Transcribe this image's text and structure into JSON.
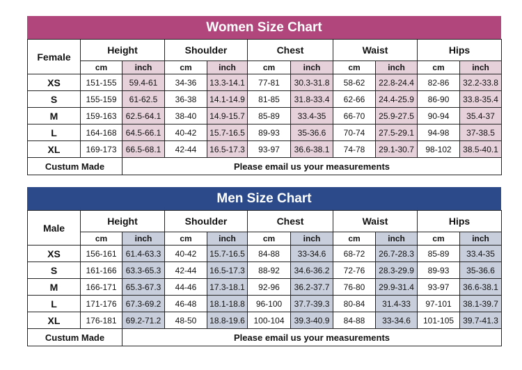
{
  "women": {
    "title": "Women Size Chart",
    "row_label": "Female",
    "groups": [
      "Height",
      "Shoulder",
      "Chest",
      "Waist",
      "Hips"
    ],
    "units": [
      "cm",
      "inch"
    ],
    "rows": [
      {
        "size": "XS",
        "cells": [
          "151-155",
          "59.4-61",
          "34-36",
          "13.3-14.1",
          "77-81",
          "30.3-31.8",
          "58-62",
          "22.8-24.4",
          "82-86",
          "32.2-33.8"
        ]
      },
      {
        "size": "S",
        "cells": [
          "155-159",
          "61-62.5",
          "36-38",
          "14.1-14.9",
          "81-85",
          "31.8-33.4",
          "62-66",
          "24.4-25.9",
          "86-90",
          "33.8-35.4"
        ]
      },
      {
        "size": "M",
        "cells": [
          "159-163",
          "62.5-64.1",
          "38-40",
          "14.9-15.7",
          "85-89",
          "33.4-35",
          "66-70",
          "25.9-27.5",
          "90-94",
          "35.4-37"
        ]
      },
      {
        "size": "L",
        "cells": [
          "164-168",
          "64.5-66.1",
          "40-42",
          "15.7-16.5",
          "89-93",
          "35-36.6",
          "70-74",
          "27.5-29.1",
          "94-98",
          "37-38.5"
        ]
      },
      {
        "size": "XL",
        "cells": [
          "169-173",
          "66.5-68.1",
          "42-44",
          "16.5-17.3",
          "93-97",
          "36.6-38.1",
          "74-78",
          "29.1-30.7",
          "98-102",
          "38.5-40.1"
        ]
      }
    ],
    "custom_label": "Custum Made",
    "email_note": "Please email us your measurements"
  },
  "men": {
    "title": "Men Size Chart",
    "row_label": "Male",
    "groups": [
      "Height",
      "Shoulder",
      "Chest",
      "Waist",
      "Hips"
    ],
    "units": [
      "cm",
      "inch"
    ],
    "rows": [
      {
        "size": "XS",
        "cells": [
          "156-161",
          "61.4-63.3",
          "40-42",
          "15.7-16.5",
          "84-88",
          "33-34.6",
          "68-72",
          "26.7-28.3",
          "85-89",
          "33.4-35"
        ]
      },
      {
        "size": "S",
        "cells": [
          "161-166",
          "63.3-65.3",
          "42-44",
          "16.5-17.3",
          "88-92",
          "34.6-36.2",
          "72-76",
          "28.3-29.9",
          "89-93",
          "35-36.6"
        ]
      },
      {
        "size": "M",
        "cells": [
          "166-171",
          "65.3-67.3",
          "44-46",
          "17.3-18.1",
          "92-96",
          "36.2-37.7",
          "76-80",
          "29.9-31.4",
          "93-97",
          "36.6-38.1"
        ]
      },
      {
        "size": "L",
        "cells": [
          "171-176",
          "67.3-69.2",
          "46-48",
          "18.1-18.8",
          "96-100",
          "37.7-39.3",
          "80-84",
          "31.4-33",
          "97-101",
          "38.1-39.7"
        ]
      },
      {
        "size": "XL",
        "cells": [
          "176-181",
          "69.2-71.2",
          "48-50",
          "18.8-19.6",
          "100-104",
          "39.3-40.9",
          "84-88",
          "33-34.6",
          "101-105",
          "39.7-41.3"
        ]
      }
    ],
    "custom_label": "Custum Made",
    "email_note": "Please email us your measurements"
  },
  "colors": {
    "women_banner": "#b0467c",
    "women_inch_fill": "#e6d1db",
    "men_banner": "#2c4a8a",
    "men_inch_fill": "#c8cedb"
  }
}
